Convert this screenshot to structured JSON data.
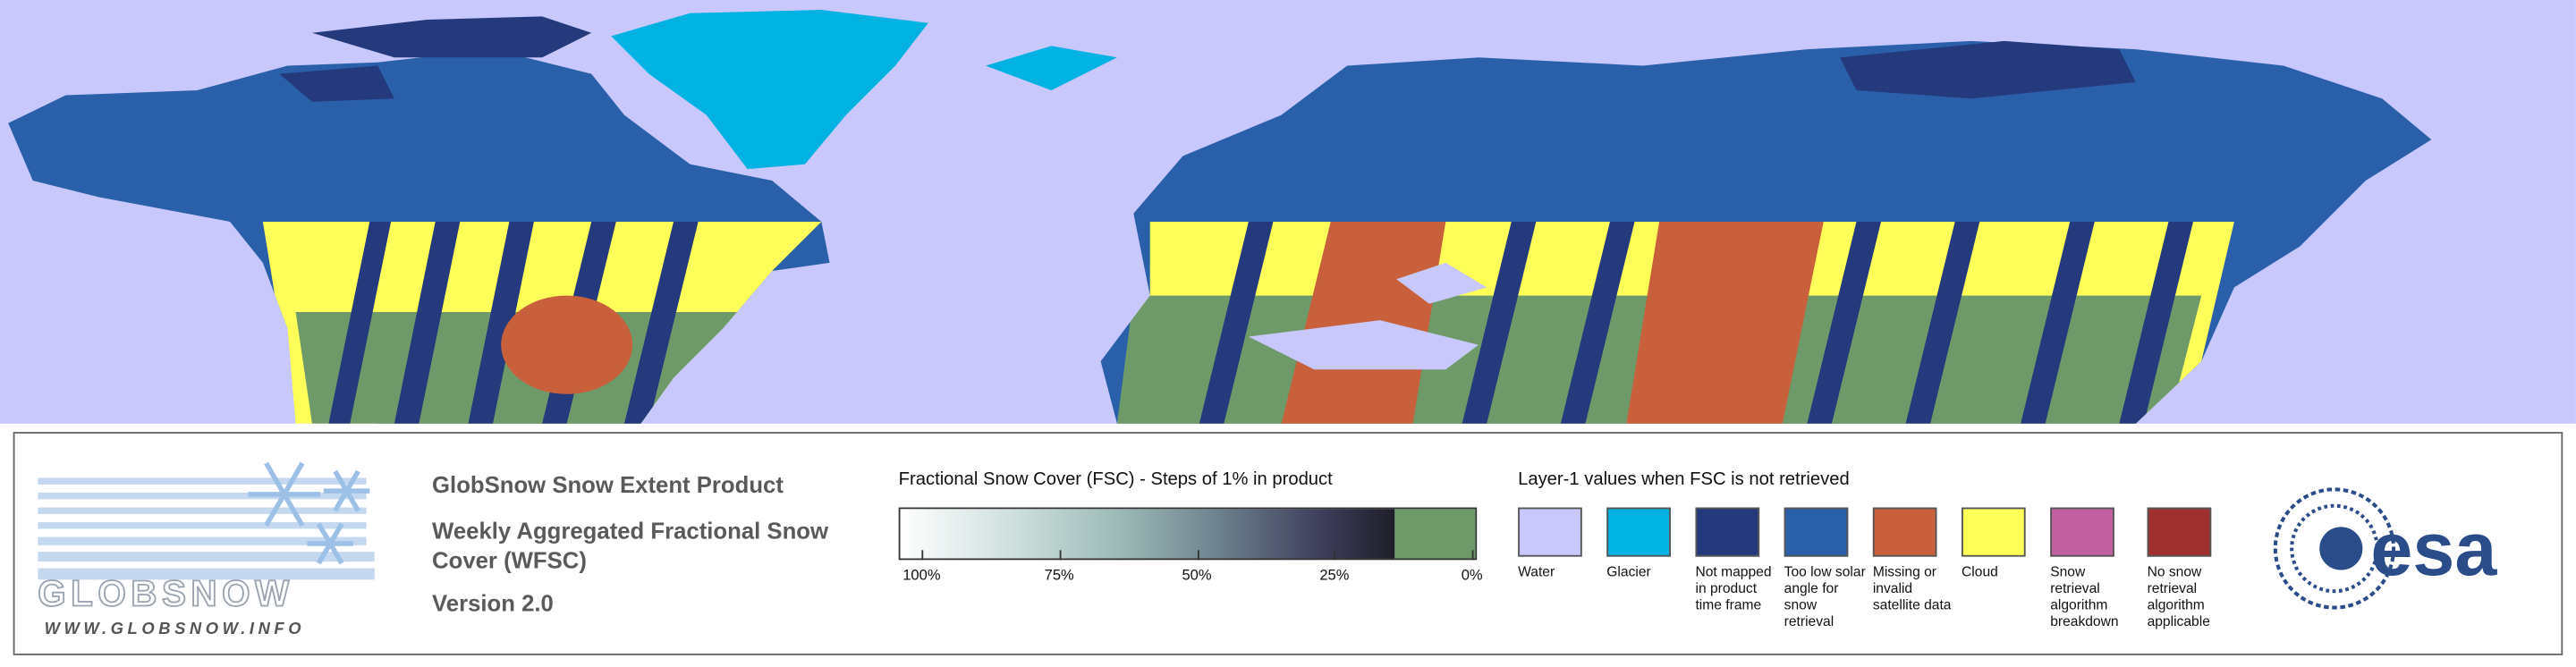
{
  "logo": {
    "name": "GLOBSNOW",
    "url": "WWW.GLOBSNOW.INFO"
  },
  "product": {
    "title": "GlobSnow Snow Extent Product",
    "subtitle": "Weekly Aggregated Fractional Snow Cover (WFSC)",
    "version": "Version 2.0"
  },
  "colorbar": {
    "title": "Fractional Snow Cover (FSC) - Steps of 1% in product",
    "xlim": [
      100,
      0
    ],
    "ticks": [
      {
        "value": 100,
        "label": "100%"
      },
      {
        "value": 75,
        "label": "75%"
      },
      {
        "value": 50,
        "label": "50%"
      },
      {
        "value": 25,
        "label": "25%"
      },
      {
        "value": 0,
        "label": "0%"
      }
    ]
  },
  "layer1": {
    "title": "Layer-1 values when FSC is not retrieved",
    "classes": [
      {
        "label": "Water",
        "color": "#c8c8fc"
      },
      {
        "label": "Glacier",
        "color": "#00b2e2"
      },
      {
        "label": "Not mapped in product time frame",
        "color": "#243a7c"
      },
      {
        "label": "Too low solar angle for snow retrieval",
        "color": "#2a60aa"
      },
      {
        "label": "Missing or invalid satellite data",
        "color": "#c8603c"
      },
      {
        "label": "Cloud",
        "color": "#ffff5a"
      },
      {
        "label": "Snow retrieval algorithm breakdown",
        "color": "#c060a0"
      },
      {
        "label": "No snow retrieval algorithm applicable",
        "color": "#a03030"
      }
    ]
  },
  "agency": "esa"
}
